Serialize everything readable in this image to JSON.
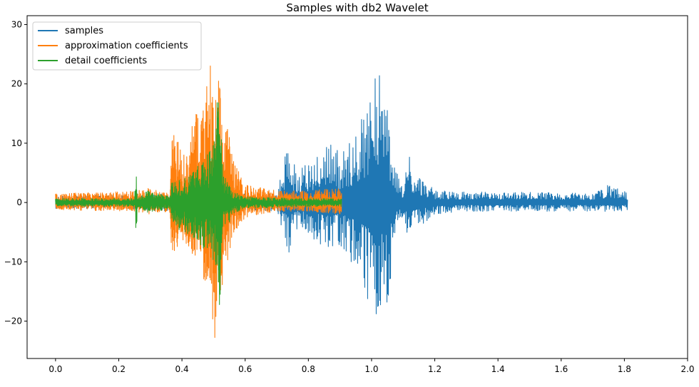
{
  "chart_data": {
    "type": "line",
    "title": "Samples with db2 Wavelet",
    "xlabel": "",
    "ylabel": "",
    "xlim": [
      -0.09,
      2.0
    ],
    "ylim": [
      -26.3,
      31.5
    ],
    "x_ticks": [
      0.0,
      0.2,
      0.4,
      0.6,
      0.8,
      1.0,
      1.2,
      1.4,
      1.6,
      1.8,
      2.0
    ],
    "x_tick_labels": [
      "0.0",
      "0.2",
      "0.4",
      "0.6",
      "0.8",
      "1.0",
      "1.2",
      "1.4",
      "1.6",
      "1.8",
      "2.0"
    ],
    "y_ticks": [
      -20,
      -10,
      0,
      10,
      20,
      30
    ],
    "y_tick_labels": [
      "−20",
      "−10",
      "0",
      "10",
      "20",
      "30"
    ],
    "grid": false,
    "legend_position": "top-left",
    "series": [
      {
        "name": "samples",
        "color": "#1f77b4",
        "x_range": [
          0.0,
          1.81
        ],
        "envelope_x": [
          0.0,
          0.2,
          0.36,
          0.4,
          0.5,
          0.55,
          0.6,
          0.7,
          0.735,
          0.76,
          0.82,
          0.87,
          0.9,
          0.95,
          1.0,
          1.02,
          1.05,
          1.08,
          1.1,
          1.12,
          1.13,
          1.2,
          1.3,
          1.5,
          1.7,
          1.75,
          1.81
        ],
        "envelope_upper": [
          1.2,
          1.2,
          1.5,
          2.0,
          2.0,
          1.5,
          1.5,
          1.5,
          10.0,
          6.0,
          8.0,
          12.0,
          8.0,
          12.0,
          20.0,
          24.0,
          18.0,
          5.0,
          2.5,
          9.0,
          6.0,
          2.0,
          1.8,
          1.8,
          1.5,
          3.0,
          1.8
        ],
        "envelope_lower": [
          -1.0,
          -1.0,
          -1.5,
          -2.0,
          -2.0,
          -1.5,
          -1.5,
          -1.5,
          -9.0,
          -5.0,
          -7.0,
          -9.0,
          -7.0,
          -12.0,
          -18.0,
          -21.0,
          -20.0,
          -5.0,
          -2.5,
          -8.0,
          -5.0,
          -2.0,
          -1.5,
          -1.5,
          -1.5,
          -1.5,
          -1.5
        ]
      },
      {
        "name": "approximation coefficients",
        "color": "#ff7f0e",
        "x_range": [
          0.0,
          0.905
        ],
        "envelope_x": [
          0.0,
          0.2,
          0.25,
          0.3,
          0.36,
          0.37,
          0.39,
          0.42,
          0.44,
          0.46,
          0.48,
          0.5,
          0.51,
          0.53,
          0.56,
          0.6,
          0.7,
          0.8,
          0.905
        ],
        "envelope_upper": [
          1.5,
          1.8,
          2.0,
          2.5,
          1.5,
          13.0,
          10.0,
          8.0,
          16.0,
          14.0,
          20.0,
          29.0,
          22.0,
          17.0,
          8.0,
          3.0,
          2.0,
          2.0,
          2.5
        ],
        "envelope_lower": [
          -1.2,
          -1.5,
          -1.5,
          -2.0,
          -1.5,
          -11.0,
          -7.0,
          -8.0,
          -9.0,
          -13.0,
          -15.0,
          -22.0,
          -24.0,
          -14.0,
          -6.0,
          -2.5,
          -1.5,
          -1.5,
          -2.0
        ]
      },
      {
        "name": "detail coefficients",
        "color": "#2ca02c",
        "x_range": [
          0.0,
          0.905
        ],
        "envelope_x": [
          0.0,
          0.25,
          0.255,
          0.26,
          0.29,
          0.36,
          0.37,
          0.4,
          0.44,
          0.47,
          0.5,
          0.51,
          0.52,
          0.53,
          0.56,
          0.6,
          0.7,
          0.8,
          0.905
        ],
        "envelope_upper": [
          0.7,
          0.7,
          8.0,
          0.8,
          2.0,
          1.0,
          4.0,
          4.0,
          6.0,
          7.0,
          10.0,
          18.5,
          16.0,
          5.0,
          2.0,
          1.0,
          0.8,
          0.7,
          0.7
        ],
        "envelope_lower": [
          -0.7,
          -0.7,
          -5.8,
          -0.8,
          -2.0,
          -1.0,
          -4.0,
          -5.0,
          -6.0,
          -8.0,
          -11.0,
          -15.0,
          -18.0,
          -6.0,
          -2.0,
          -1.0,
          -0.8,
          -0.7,
          -0.7
        ]
      }
    ]
  }
}
